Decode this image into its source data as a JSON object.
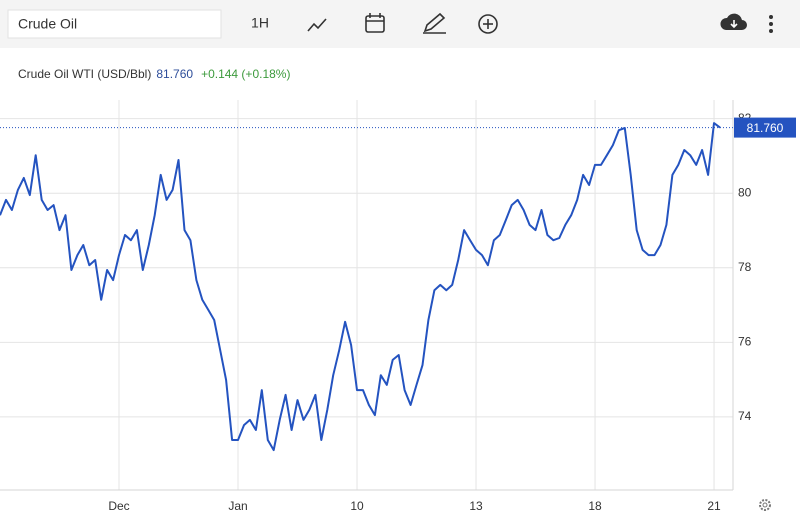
{
  "toolbar": {
    "search": "Crude Oil",
    "interval": "1H"
  },
  "chart_data": {
    "type": "line",
    "series": [
      {
        "name": "Crude Oil WTI (USD/Bbl)",
        "color": "#2453c0",
        "values": [
          79.41,
          79.82,
          79.55,
          80.09,
          80.41,
          79.95,
          81.02,
          79.82,
          79.55,
          79.68,
          79.01,
          79.41,
          77.94,
          78.34,
          78.61,
          78.07,
          78.21,
          77.14,
          77.94,
          77.67,
          78.34,
          78.88,
          78.74,
          79.01,
          77.94,
          78.61,
          79.41,
          80.49,
          79.82,
          80.09,
          80.89,
          79.01,
          78.74,
          77.67,
          77.14,
          76.87,
          76.6,
          75.79,
          74.99,
          73.38,
          73.38,
          73.78,
          73.92,
          73.65,
          74.72,
          73.38,
          73.11,
          73.92,
          74.59,
          73.65,
          74.45,
          73.92,
          74.19,
          74.59,
          73.38,
          74.19,
          75.12,
          75.79,
          76.55,
          75.93,
          74.72,
          74.72,
          74.32,
          74.05,
          75.12,
          74.86,
          75.53,
          75.66,
          74.72,
          74.32,
          74.86,
          75.39,
          76.6,
          77.4,
          77.54,
          77.4,
          77.54,
          78.21,
          79.01,
          78.74,
          78.48,
          78.34,
          78.07,
          78.74,
          78.88,
          79.28,
          79.68,
          79.82,
          79.55,
          79.15,
          79.01,
          79.55,
          78.88,
          78.74,
          78.8,
          79.15,
          79.41,
          79.82,
          80.49,
          80.22,
          80.76,
          80.76,
          81.02,
          81.29,
          81.69,
          81.75,
          80.49,
          79.01,
          78.48,
          78.34,
          78.34,
          78.61,
          79.15,
          80.49,
          80.76,
          81.16,
          81.02,
          80.76,
          81.16,
          80.49,
          81.88,
          81.76
        ]
      }
    ],
    "categories": [
      null,
      null,
      null,
      null,
      null,
      null,
      null,
      null,
      null,
      null,
      null,
      null,
      null,
      null,
      null,
      null,
      null,
      null,
      null,
      null,
      "Dec",
      null,
      null,
      null,
      null,
      null,
      null,
      null,
      null,
      null,
      null,
      null,
      null,
      null,
      null,
      null,
      null,
      null,
      null,
      null,
      "Jan",
      null,
      null,
      null,
      null,
      null,
      null,
      null,
      null,
      null,
      null,
      null,
      null,
      null,
      null,
      null,
      null,
      null,
      null,
      null,
      "10",
      null,
      null,
      null,
      null,
      null,
      null,
      null,
      null,
      null,
      null,
      null,
      null,
      null,
      null,
      null,
      null,
      null,
      null,
      null,
      "13",
      null,
      null,
      null,
      null,
      null,
      null,
      null,
      null,
      null,
      null,
      null,
      null,
      null,
      null,
      null,
      null,
      null,
      null,
      null,
      "18",
      null,
      null,
      null,
      null,
      null,
      null,
      null,
      null,
      null,
      null,
      null,
      null,
      null,
      null,
      null,
      null,
      null,
      null,
      null,
      "21",
      null
    ],
    "price": "81.760",
    "change": "+0.144 (+0.18%)",
    "ylim": [
      72.04,
      82.5
    ],
    "yticks": [
      74,
      76,
      78,
      80,
      82
    ],
    "grid": true
  }
}
